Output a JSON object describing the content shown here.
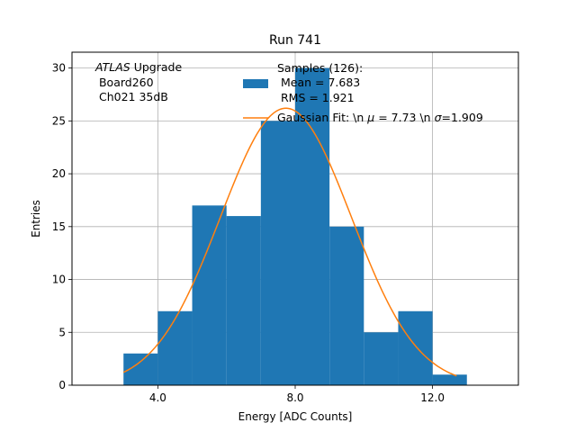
{
  "chart_data": {
    "type": "bar",
    "title": "Run 741",
    "xlabel": "Energy [ADC Counts]",
    "ylabel": "Entries",
    "xlim": [
      1.5,
      14.5
    ],
    "ylim": [
      0,
      31.5
    ],
    "grid": true,
    "x_ticks": [
      4.0,
      8.0,
      12.0
    ],
    "x_tick_labels": [
      "4.0",
      "8.0",
      "12.0"
    ],
    "y_ticks": [
      0,
      5,
      10,
      15,
      20,
      25,
      30
    ],
    "y_tick_labels": [
      "0",
      "5",
      "10",
      "15",
      "20",
      "25",
      "30"
    ],
    "bins": [
      {
        "x0": 3,
        "x1": 4,
        "count": 3
      },
      {
        "x0": 4,
        "x1": 5,
        "count": 7
      },
      {
        "x0": 5,
        "x1": 6,
        "count": 17
      },
      {
        "x0": 6,
        "x1": 7,
        "count": 16
      },
      {
        "x0": 7,
        "x1": 8,
        "count": 25
      },
      {
        "x0": 8,
        "x1": 9,
        "count": 30
      },
      {
        "x0": 9,
        "x1": 10,
        "count": 15
      },
      {
        "x0": 10,
        "x1": 11,
        "count": 5
      },
      {
        "x0": 11,
        "x1": 12,
        "count": 7
      },
      {
        "x0": 12,
        "x1": 13,
        "count": 1
      }
    ],
    "fit": {
      "amplitude": 26.2,
      "mu": 7.73,
      "sigma": 1.909,
      "x_range": [
        3,
        12.7
      ]
    },
    "colors": {
      "bars": "#1f77b4",
      "fit": "#ff7f0e",
      "grid": "#b0b0b0"
    },
    "annotation": {
      "line1_italic": "ATLAS",
      "line1_rest": " Upgrade",
      "line2": " Board260",
      "line3": " Ch021 35dB"
    },
    "legend": {
      "placement": "top-right",
      "bar_label_lines": [
        "Samples (126):",
        " Mean = 7.683",
        " RMS = 1.921"
      ],
      "fit_label_parts": [
        "Gaussian Fit: \\n ",
        "μ",
        " = 7.73 \\n ",
        "σ",
        "=1.909"
      ]
    }
  }
}
